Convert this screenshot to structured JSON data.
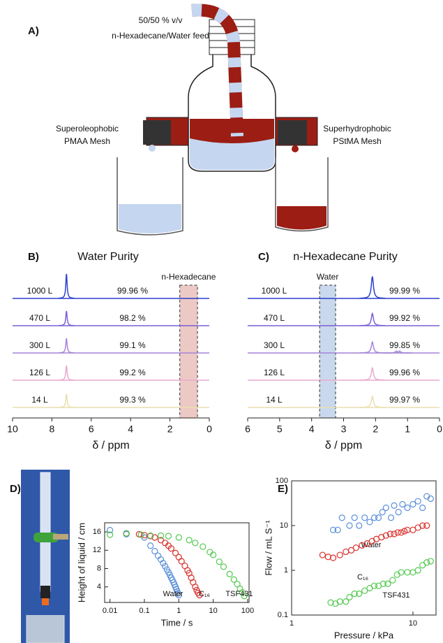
{
  "diagram": {
    "panel_label": "A)",
    "feed": [
      "50/50 % v/v",
      "n-Hexadecane/Water feed"
    ],
    "left_mesh": [
      "Superoleophobic",
      "PMAA Mesh"
    ],
    "right_mesh": [
      "Superhydrophobic",
      "PStMA Mesh"
    ]
  },
  "chart_data": [
    {
      "type": "nmr",
      "panel_label": "B)",
      "title": "Water Purity",
      "xlabel": "δ / ppm",
      "xlim": [
        10,
        0
      ],
      "xticks": [
        10,
        8,
        6,
        4,
        2,
        0
      ],
      "highlight": {
        "label": "n-Hexadecane",
        "range": [
          1.5,
          0.6
        ],
        "color": "#ecc9c4"
      },
      "series": [
        {
          "name": "1000 L",
          "purity": "99.96 %",
          "color": "#2b3fcf",
          "x": [
            7.26
          ],
          "values": [
            1.0
          ]
        },
        {
          "name": "470 L",
          "purity": "98.2 %",
          "color": "#7a5fd6",
          "x": [
            7.26
          ],
          "values": [
            0.6
          ]
        },
        {
          "name": "300 L",
          "purity": "99.1 %",
          "color": "#a684d8",
          "x": [
            7.26
          ],
          "values": [
            0.6
          ]
        },
        {
          "name": "126 L",
          "purity": "99.2 %",
          "color": "#e9a9cf",
          "x": [
            7.26
          ],
          "values": [
            0.6
          ]
        },
        {
          "name": "14 L",
          "purity": "99.3 %",
          "color": "#eadfae",
          "x": [
            7.26
          ],
          "values": [
            0.55
          ]
        }
      ]
    },
    {
      "type": "nmr",
      "panel_label": "C)",
      "title": "n-Hexadecane Purity",
      "xlabel": "δ / ppm",
      "xlim": [
        6,
        0
      ],
      "xticks": [
        6,
        5,
        4,
        3,
        2,
        1,
        0
      ],
      "highlight": {
        "label": "Water",
        "range": [
          3.75,
          3.25
        ],
        "color": "#c9d8ec"
      },
      "series": [
        {
          "name": "1000 L",
          "purity": "99.99 %",
          "color": "#2b3fcf",
          "x": [
            2.1
          ],
          "values": [
            0.9
          ]
        },
        {
          "name": "470 L",
          "purity": "99.92 %",
          "color": "#7a5fd6",
          "x": [
            2.1
          ],
          "values": [
            0.5
          ]
        },
        {
          "name": "300 L",
          "purity": "99.85 %",
          "color": "#a684d8",
          "x": [
            2.1,
            1.35,
            1.25
          ],
          "values": [
            0.45,
            0.08,
            0.08
          ]
        },
        {
          "name": "126 L",
          "purity": "99.96 %",
          "color": "#e9a9cf",
          "x": [
            2.1
          ],
          "values": [
            0.5
          ]
        },
        {
          "name": "14 L",
          "purity": "99.97 %",
          "color": "#eadfae",
          "x": [
            2.1
          ],
          "values": [
            0.45
          ]
        }
      ]
    },
    {
      "type": "scatter",
      "panel_label": "D)",
      "xlabel": "Time / s",
      "ylabel": "Height of liquid / cm",
      "xscale": "log",
      "xlim": [
        0.007,
        110
      ],
      "xticks": [
        0.01,
        0.1,
        1,
        10,
        100
      ],
      "ylim": [
        0.6,
        18
      ],
      "yticks": [
        4,
        8,
        12,
        16
      ],
      "series": [
        {
          "name": "Water",
          "color": "#5b8fd9",
          "x": [
            0.01,
            0.03,
            0.1,
            0.15,
            0.2,
            0.25,
            0.3,
            0.35,
            0.4,
            0.45,
            0.5,
            0.55,
            0.6,
            0.65,
            0.7,
            0.75,
            0.8,
            0.85,
            0.9,
            0.95,
            1.0
          ],
          "values": [
            16.4,
            15.5,
            14.8,
            13.0,
            11.8,
            10.8,
            10.0,
            9.2,
            8.5,
            7.8,
            7.2,
            6.6,
            6.0,
            5.5,
            5.0,
            4.5,
            4.0,
            3.5,
            3.0,
            2.6,
            2.2
          ]
        },
        {
          "name": "C₁₆",
          "color": "#d9302c",
          "x": [
            0.03,
            0.07,
            0.1,
            0.15,
            0.2,
            0.3,
            0.4,
            0.5,
            0.6,
            0.8,
            1.0,
            1.2,
            1.5,
            1.8,
            2.0,
            2.3,
            2.6,
            3.0,
            3.3,
            3.6,
            4.0
          ],
          "values": [
            15.7,
            15.5,
            15.3,
            15.1,
            14.8,
            14.2,
            13.6,
            13.0,
            12.4,
            11.4,
            10.5,
            9.6,
            8.6,
            7.6,
            7.0,
            6.0,
            5.0,
            4.0,
            3.3,
            2.7,
            2.2
          ]
        },
        {
          "name": "TSF431",
          "color": "#52c94f",
          "x": [
            0.01,
            0.03,
            0.08,
            0.15,
            0.3,
            0.5,
            1,
            2,
            3,
            5,
            8,
            10,
            15,
            20,
            30,
            40,
            50,
            60,
            70,
            80
          ],
          "values": [
            15.4,
            15.7,
            15.4,
            15.2,
            15.2,
            15.1,
            14.8,
            14.2,
            13.6,
            12.8,
            11.6,
            11.0,
            9.5,
            8.4,
            6.8,
            5.6,
            4.6,
            3.6,
            2.8,
            2.0
          ]
        }
      ]
    },
    {
      "type": "scatter",
      "panel_label": "E)",
      "xlabel": "Pressure / kPa",
      "ylabel": "Flow / mL S⁻¹",
      "xscale": "log",
      "yscale": "log",
      "xlim": [
        1,
        15.5
      ],
      "xticks": [
        1,
        10
      ],
      "ylim": [
        0.1,
        100
      ],
      "yticks": [
        0.1,
        1,
        10,
        100
      ],
      "series": [
        {
          "name": "Water",
          "color": "#5b8fd9",
          "x": [
            2.2,
            2.4,
            2.6,
            3,
            3.3,
            3.6,
            4,
            4.4,
            4.8,
            5.2,
            5.6,
            6,
            6.6,
            7,
            7.6,
            8.2,
            9,
            10,
            11,
            12,
            13,
            14
          ],
          "values": [
            8,
            8,
            15,
            10,
            15,
            10,
            15,
            12,
            15,
            15,
            20,
            25,
            15,
            28,
            20,
            30,
            25,
            30,
            35,
            25,
            45,
            40
          ]
        },
        {
          "name": "C₁₆",
          "color": "#d9302c",
          "x": [
            1.8,
            2,
            2.2,
            2.5,
            2.8,
            3.1,
            3.4,
            3.8,
            4.2,
            4.6,
            5,
            5.5,
            6,
            6.5,
            7,
            7.5,
            8,
            8.5,
            9,
            10,
            11,
            12,
            13
          ],
          "values": [
            2.2,
            2,
            1.9,
            2.2,
            2.6,
            2.8,
            3.2,
            3.6,
            4,
            4.5,
            5,
            5.5,
            6,
            6.5,
            6.5,
            7,
            7,
            7.5,
            8,
            8,
            9,
            10,
            10
          ]
        },
        {
          "name": "TSF431",
          "color": "#52c94f",
          "x": [
            2.1,
            2.3,
            2.5,
            2.8,
            3,
            3.3,
            3.6,
            4,
            4.4,
            4.8,
            5.2,
            5.7,
            6.2,
            6.8,
            7.4,
            8,
            9,
            10,
            11,
            12,
            13,
            14
          ],
          "values": [
            0.19,
            0.18,
            0.2,
            0.2,
            0.25,
            0.3,
            0.3,
            0.35,
            0.4,
            0.45,
            0.45,
            0.5,
            0.5,
            0.6,
            0.8,
            0.9,
            0.9,
            0.9,
            1,
            1.3,
            1.5,
            1.6
          ]
        }
      ]
    }
  ]
}
